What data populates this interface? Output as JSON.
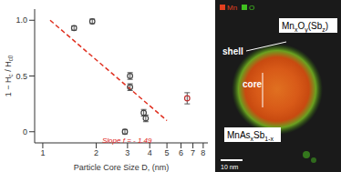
{
  "chart_data": {
    "type": "scatter",
    "x_label": "Particle Core Size D, (nm)",
    "y_label": [
      {
        "t": "1 − H"
      },
      {
        "t": "c",
        "sub": true
      },
      {
        "t": " / H"
      },
      {
        "t": "c0",
        "sub": true
      }
    ],
    "log": "x",
    "xlim": [
      0.9,
      8.5
    ],
    "xticks": [
      1,
      2,
      3,
      4,
      5,
      6,
      7,
      8
    ],
    "ylim": [
      -0.1,
      1.1
    ],
    "yticks": [
      0,
      {
        "value": 0.5,
        "label": "0.5"
      },
      {
        "value": 1,
        "label": "1.0"
      }
    ],
    "annotations": [
      {
        "text": "Slope f = - 1.49",
        "color": "#e02020"
      }
    ],
    "series": [
      {
        "type": "scatter",
        "marker": "circle",
        "x": [
          1.5,
          1.9,
          3.1,
          3.1,
          2.9,
          3.7,
          3.8,
          6.5
        ],
        "values": [
          0.93,
          0.99,
          0.5,
          0.4,
          0.0,
          0.17,
          0.12,
          0.3
        ],
        "errors": [
          0.02,
          0.02,
          0.03,
          0.03,
          0.02,
          0.03,
          0.03,
          0.05
        ],
        "colors": [
          "#444444",
          "#444444",
          "#444444",
          "#444444",
          "#444444",
          "#444444",
          "#444444",
          "#c03030"
        ]
      },
      {
        "type": "line",
        "line_style": "dashed",
        "color": "#e03020",
        "x": [
          1.1,
          5.0
        ],
        "values": [
          1.0,
          0.1
        ]
      }
    ]
  },
  "image_panel": {
    "legend": [
      {
        "text": "Mn",
        "color": "#e04020"
      },
      {
        "text": "O",
        "color": "#40c020"
      }
    ],
    "shell_label": [
      {
        "t": "Mn"
      },
      {
        "t": "x",
        "sub": true
      },
      {
        "t": "O"
      },
      {
        "t": "y",
        "sub": true
      },
      {
        "t": "(Sb"
      },
      {
        "t": "z",
        "sub": true
      },
      {
        "t": ")"
      }
    ],
    "shell": "shell",
    "core": "core",
    "core_label": [
      {
        "t": "MnAs"
      },
      {
        "t": "x",
        "sub": true
      },
      {
        "t": "Sb"
      },
      {
        "t": "1-x",
        "sub": true
      }
    ],
    "scale_bar": "10 nm"
  }
}
